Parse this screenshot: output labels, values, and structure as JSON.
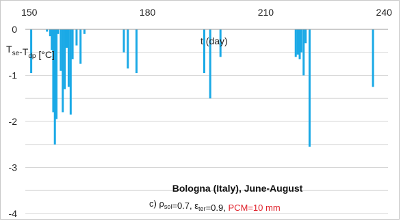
{
  "chart_data": {
    "type": "bar",
    "x_ticks": [
      150,
      180,
      210,
      240
    ],
    "y_ticks": [
      0,
      -1,
      -2,
      -3,
      -4
    ],
    "xlim": [
      149,
      241
    ],
    "ylim": [
      -4,
      0
    ],
    "grid": "horizontal",
    "bar_color": "#1aa9e6",
    "series": [
      {
        "x": [
          150.5,
          154.5,
          155.3,
          155.7,
          156.1,
          156.5,
          156.9,
          157.3,
          158.0,
          158.5,
          159.0,
          159.5,
          160.0,
          160.5,
          161.0,
          162.0,
          163.0,
          164.0,
          174.0,
          175.0,
          177.2,
          194.4,
          195.9,
          198.5,
          217.6,
          218.1,
          218.6,
          219.0,
          219.6,
          220.1,
          221.1,
          237.2
        ],
        "values": [
          -0.95,
          -0.05,
          -0.15,
          -0.45,
          -1.8,
          -2.5,
          -1.95,
          -0.1,
          -0.9,
          -1.8,
          -1.3,
          -0.4,
          -1.25,
          -1.85,
          -0.65,
          -0.35,
          -0.75,
          -0.1,
          -0.5,
          -0.85,
          -0.95,
          -0.95,
          -1.5,
          -0.6,
          -0.6,
          -0.55,
          -0.65,
          -0.5,
          -1.0,
          -0.3,
          -2.55,
          -1.25
        ]
      }
    ],
    "ylabel": "T<sub>se</sub>-T<sub>dp</sub> [°C]",
    "xlabel": "t (day)",
    "title": "Bologna (Italy), June-August",
    "subtitle_parts": [
      "c) ρ",
      "sol",
      "=0.7, ε",
      "ter",
      "=0.9, ",
      "PCM=10 mm"
    ],
    "subtitle_highlight_color": "#e0202a"
  }
}
